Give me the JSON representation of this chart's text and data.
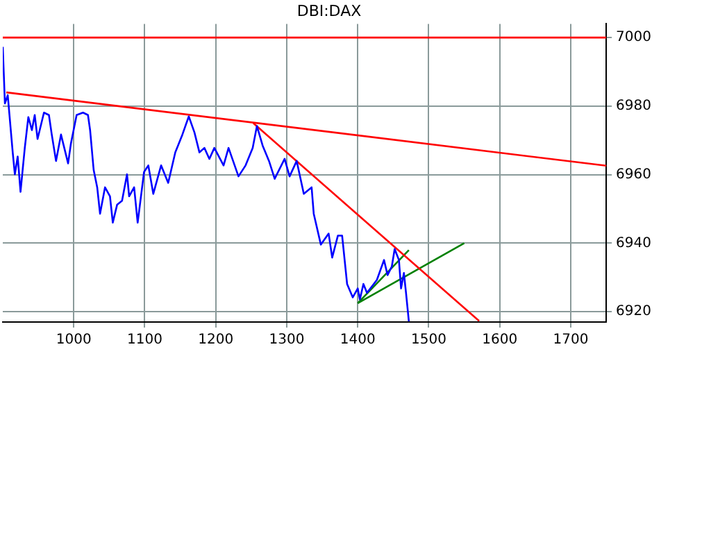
{
  "chart_data": {
    "type": "line",
    "title": "DBI:DAX",
    "xlim": [
      900,
      1750
    ],
    "xticks": [
      1000,
      1100,
      1200,
      1300,
      1400,
      1500,
      1600,
      1700
    ],
    "ylim": [
      6917,
      7004
    ],
    "yticks": [
      6920,
      6940,
      6960,
      6980,
      7000
    ],
    "grid": true,
    "legend": false,
    "marker": "none",
    "line_style": "solid",
    "ref_lines": [
      {
        "axis": "y",
        "value": 7000,
        "color": "#ff0000"
      }
    ],
    "series": [
      {
        "color": "#0000ff",
        "x": [
          900,
          903,
          907,
          914,
          917,
          921,
          925,
          931,
          936,
          941,
          945,
          949,
          958,
          965,
          969,
          975,
          982,
          992,
          996,
          1004,
          1013,
          1020,
          1023,
          1028,
          1033,
          1037,
          1044,
          1051,
          1055,
          1061,
          1068,
          1075,
          1078,
          1085,
          1090,
          1099,
          1105,
          1112,
          1123,
          1133,
          1143,
          1153,
          1162,
          1170,
          1177,
          1184,
          1191,
          1198,
          1211,
          1218,
          1232,
          1242,
          1252,
          1258,
          1266,
          1275,
          1283,
          1297,
          1304,
          1314,
          1324,
          1335,
          1338,
          1348,
          1359,
          1364,
          1372,
          1378,
          1385,
          1393,
          1400,
          1403,
          1408,
          1413,
          1427,
          1437,
          1442,
          1448,
          1452,
          1458,
          1461,
          1465,
          1468,
          1472
        ],
        "values": [
          6997.3,
          6980.8,
          6983.2,
          6966.5,
          6960.1,
          6965.3,
          6955,
          6967.8,
          6976.8,
          6973,
          6977.4,
          6970.4,
          6978.1,
          6977.4,
          6971.7,
          6964,
          6971.7,
          6963.3,
          6969.1,
          6977.4,
          6978.1,
          6977.4,
          6973,
          6961.4,
          6956.3,
          6948.6,
          6956.3,
          6953.7,
          6946,
          6951.2,
          6952.4,
          6960.1,
          6953.7,
          6956.3,
          6946,
          6960.8,
          6962.7,
          6954.4,
          6962.7,
          6957.6,
          6966.5,
          6971.7,
          6977,
          6972.3,
          6966.5,
          6967.8,
          6964.6,
          6967.8,
          6962.7,
          6967.8,
          6959.5,
          6962.7,
          6967.8,
          6974.2,
          6968.5,
          6964,
          6958.8,
          6964.6,
          6959.5,
          6964,
          6954.4,
          6956.3,
          6948.6,
          6939.6,
          6942.8,
          6935.8,
          6942.2,
          6942.2,
          6928.1,
          6924.2,
          6926.8,
          6923.6,
          6928.1,
          6925.5,
          6929.3,
          6935.1,
          6930.7,
          6933.2,
          6938.3,
          6935.1,
          6926.8,
          6931.3,
          6925.5,
          6917.2
        ]
      },
      {
        "type": "line",
        "color": "#ff0000",
        "x": [
          905,
          1750
        ],
        "values": [
          6984,
          6962.6
        ]
      },
      {
        "type": "line",
        "color": "#ff0000",
        "x": [
          1253,
          1571
        ],
        "values": [
          6975,
          6917.3
        ]
      },
      {
        "type": "line",
        "color": "#008000",
        "x": [
          1400,
          1550
        ],
        "values": [
          6922.5,
          6940
        ]
      },
      {
        "type": "line",
        "color": "#008000",
        "x": [
          1400,
          1472
        ],
        "values": [
          6922.5,
          6938
        ]
      }
    ]
  }
}
